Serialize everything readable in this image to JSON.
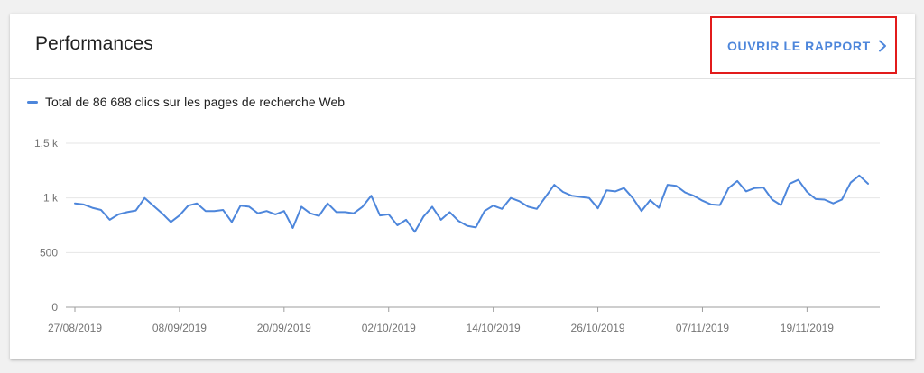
{
  "header": {
    "title": "Performances",
    "open_report_label": "OUVRIR LE RAPPORT",
    "open_report_icon": "chevron-right-icon"
  },
  "colors": {
    "series": "#4d86db",
    "link": "#4d86db",
    "highlight_border": "#e21b1b"
  },
  "chart_data": {
    "type": "line",
    "grid": true,
    "legend_placement": "top-left",
    "ylim": [
      0,
      1500
    ],
    "yticks": [
      {
        "value": 0,
        "label": "0"
      },
      {
        "value": 500,
        "label": "500"
      },
      {
        "value": 1000,
        "label": "1 k"
      },
      {
        "value": 1500,
        "label": "1,5 k"
      }
    ],
    "xticks": [
      "27/08/2019",
      "08/09/2019",
      "20/09/2019",
      "02/10/2019",
      "14/10/2019",
      "26/10/2019",
      "07/11/2019",
      "19/11/2019"
    ],
    "series": [
      {
        "name": "Total de 86 688 clics sur les pages de recherche Web",
        "x_start": "27/08/2019",
        "x_step_days": 1,
        "values": [
          950,
          940,
          910,
          890,
          800,
          850,
          870,
          885,
          1000,
          930,
          860,
          780,
          840,
          930,
          950,
          880,
          880,
          890,
          780,
          930,
          920,
          860,
          880,
          850,
          880,
          725,
          920,
          860,
          835,
          950,
          870,
          870,
          860,
          920,
          1020,
          840,
          850,
          750,
          800,
          690,
          830,
          920,
          800,
          870,
          790,
          745,
          730,
          880,
          930,
          900,
          1000,
          970,
          920,
          900,
          1010,
          1120,
          1055,
          1020,
          1010,
          1000,
          905,
          1070,
          1060,
          1090,
          1000,
          880,
          980,
          910,
          1120,
          1110,
          1050,
          1020,
          975,
          940,
          935,
          1090,
          1155,
          1060,
          1090,
          1095,
          985,
          935,
          1130,
          1165,
          1055,
          990,
          985,
          950,
          985,
          1140,
          1205,
          1130
        ]
      }
    ]
  }
}
